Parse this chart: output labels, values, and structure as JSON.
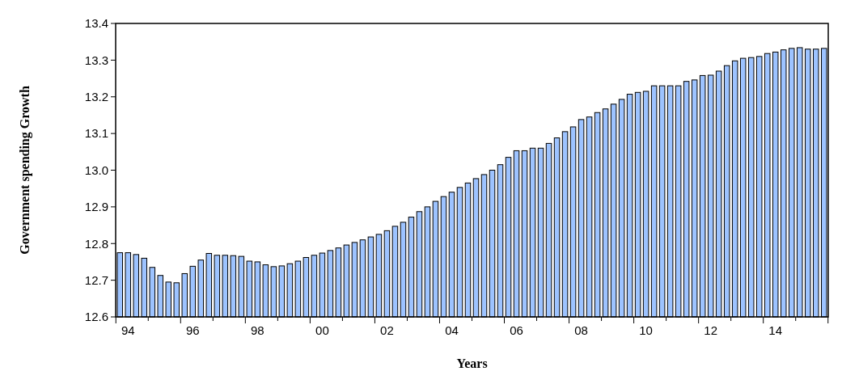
{
  "chart_data": {
    "type": "bar",
    "xlabel": "Years",
    "ylabel": "Government spending Growth",
    "categories": [
      null,
      "94",
      null,
      null,
      null,
      null,
      null,
      null,
      null,
      "96",
      null,
      null,
      null,
      null,
      null,
      null,
      null,
      "98",
      null,
      null,
      null,
      null,
      null,
      null,
      null,
      "00",
      null,
      null,
      null,
      null,
      null,
      null,
      null,
      "02",
      null,
      null,
      null,
      null,
      null,
      null,
      null,
      "04",
      null,
      null,
      null,
      null,
      null,
      null,
      null,
      "06",
      null,
      null,
      null,
      null,
      null,
      null,
      null,
      "08",
      null,
      null,
      null,
      null,
      null,
      null,
      null,
      "10",
      null,
      null,
      null,
      null,
      null,
      null,
      null,
      "12",
      null,
      null,
      null,
      null,
      null,
      null,
      null,
      "14",
      null,
      null,
      null,
      null,
      null,
      null
    ],
    "values": [
      12.775,
      12.775,
      12.77,
      12.76,
      12.735,
      12.713,
      12.695,
      12.693,
      12.718,
      12.738,
      12.755,
      12.773,
      12.768,
      12.768,
      12.767,
      12.765,
      12.752,
      12.75,
      12.742,
      12.737,
      12.739,
      12.745,
      12.752,
      12.762,
      12.768,
      12.774,
      12.781,
      12.788,
      12.796,
      12.803,
      12.81,
      12.818,
      12.825,
      12.835,
      12.847,
      12.858,
      12.872,
      12.887,
      12.9,
      12.915,
      12.928,
      12.94,
      12.953,
      12.965,
      12.977,
      12.988,
      13.0,
      13.015,
      13.035,
      13.053,
      13.053,
      13.06,
      13.06,
      13.073,
      13.088,
      13.105,
      13.118,
      13.138,
      13.145,
      13.157,
      13.167,
      13.18,
      13.193,
      13.207,
      13.212,
      13.215,
      13.23,
      13.23,
      13.23,
      13.23,
      13.242,
      13.246,
      13.258,
      13.259,
      13.27,
      13.285,
      13.298,
      13.305,
      13.307,
      13.31,
      13.318,
      13.322,
      13.328,
      13.332,
      13.334,
      13.33,
      13.33,
      13.332
    ],
    "color": "#9dc3ff",
    "ylim": [
      12.6,
      13.4
    ],
    "yticks": [
      12.6,
      12.7,
      12.8,
      12.9,
      {
        "value": 13.0,
        "label": "13.0"
      },
      13.1,
      13.2,
      13.3,
      13.4
    ],
    "grid": false
  }
}
